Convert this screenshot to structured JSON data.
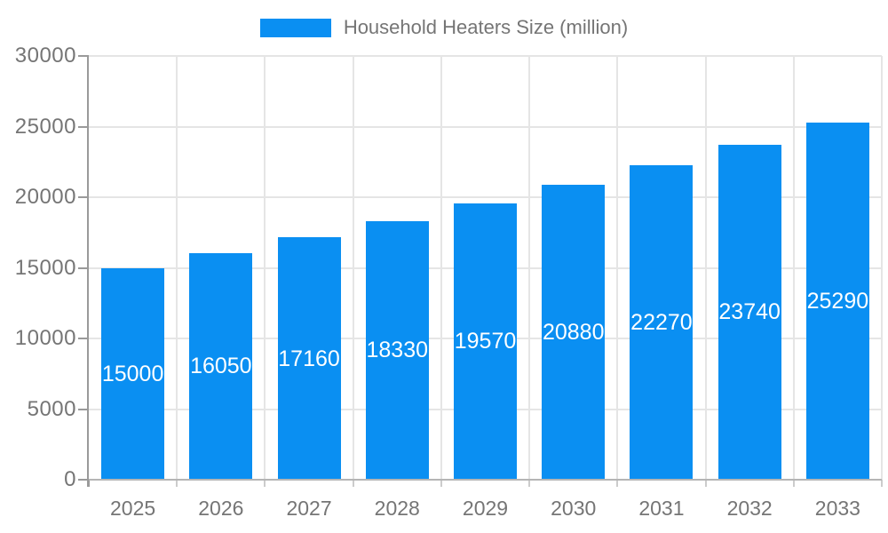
{
  "chart_data": {
    "type": "bar",
    "title": "Household Heaters Size (million)",
    "legend": [
      {
        "label": "Household Heaters Size (million)",
        "color": "#0a8ff2"
      }
    ],
    "legend_position": "top",
    "categories": [
      "2025",
      "2026",
      "2027",
      "2028",
      "2029",
      "2030",
      "2031",
      "2032",
      "2033"
    ],
    "values": [
      15000,
      16050,
      17160,
      18330,
      19570,
      20880,
      22270,
      23740,
      25290
    ],
    "bar_labels": [
      "15000",
      "16050",
      "17160",
      "18330",
      "19570",
      "20880",
      "22270",
      "23740",
      "25290"
    ],
    "xlabel": "",
    "ylabel": "",
    "ylim": [
      0,
      30000
    ],
    "ytick_step": 5000,
    "ytick_labels": [
      "0",
      "5000",
      "10000",
      "15000",
      "20000",
      "25000",
      "30000"
    ],
    "grid": true,
    "colors": {
      "bar": "#0a8ff2",
      "bar_label_text": "#ffffff",
      "grid_line": "#e5e5e5",
      "y_axis_line": "#9a9a9a",
      "x_axis_line": "#b5b5b5",
      "x_tick_mark": "#cccccc",
      "tick_text": "#757575",
      "legend_text": "#757575",
      "background": "#ffffff"
    }
  }
}
